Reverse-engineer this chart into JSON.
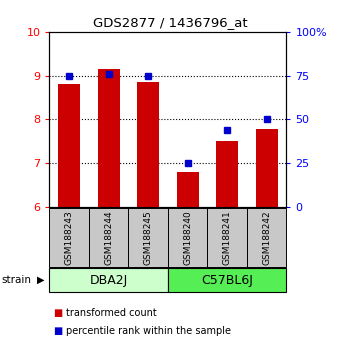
{
  "title": "GDS2877 / 1436796_at",
  "samples": [
    "GSM188243",
    "GSM188244",
    "GSM188245",
    "GSM188240",
    "GSM188241",
    "GSM188242"
  ],
  "red_values": [
    8.82,
    9.15,
    8.85,
    6.8,
    7.5,
    7.78
  ],
  "blue_values": [
    75.0,
    76.0,
    75.0,
    25.0,
    44.0,
    50.0
  ],
  "ylim_left": [
    6,
    10
  ],
  "ylim_right": [
    0,
    100
  ],
  "yticks_left": [
    6,
    7,
    8,
    9,
    10
  ],
  "yticks_right": [
    0,
    25,
    50,
    75,
    100
  ],
  "ytick_labels_right": [
    "0",
    "25",
    "50",
    "75",
    "100%"
  ],
  "groups": [
    {
      "label": "DBA2J",
      "indices": [
        0,
        1,
        2
      ],
      "color": "#ccffcc"
    },
    {
      "label": "C57BL6J",
      "indices": [
        3,
        4,
        5
      ],
      "color": "#55ee55"
    }
  ],
  "bar_color": "#cc0000",
  "dot_color": "#0000cc",
  "group_box_color": "#c8c8c8",
  "legend_items": [
    {
      "color": "#cc0000",
      "label": "transformed count"
    },
    {
      "color": "#0000cc",
      "label": "percentile rank within the sample"
    }
  ],
  "bar_width": 0.55,
  "strain_label": "strain"
}
